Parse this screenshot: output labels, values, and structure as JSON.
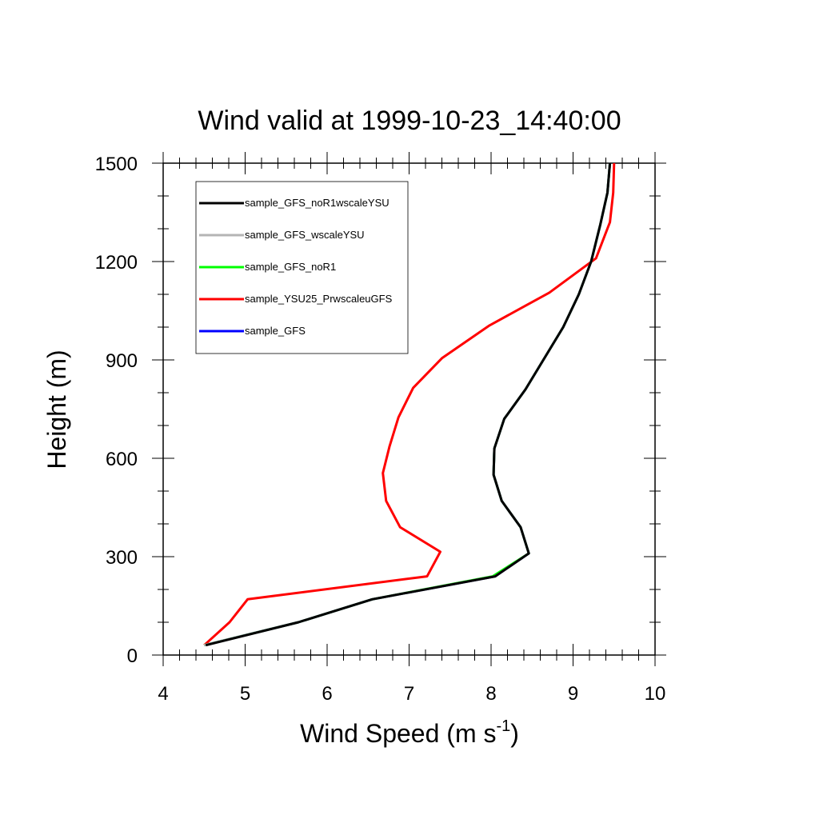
{
  "chart_data": {
    "type": "line",
    "title": "Wind valid at 1999-10-23_14:40:00",
    "xlabel": "Wind Speed (m s",
    "xlabel_sup": "-1",
    "xlabel_end": ")",
    "ylabel": "Height (m)",
    "xlim": [
      4,
      10
    ],
    "ylim": [
      0,
      1500
    ],
    "x_ticks": [
      4,
      5,
      6,
      7,
      8,
      9,
      10
    ],
    "y_ticks": [
      0,
      300,
      600,
      900,
      1200,
      1500
    ],
    "x_tick_labels": [
      "4",
      "5",
      "6",
      "7",
      "8",
      "9",
      "10"
    ],
    "y_tick_labels": [
      "0",
      "300",
      "600",
      "900",
      "1200",
      "1500"
    ],
    "legend_placement": "top-left",
    "series": [
      {
        "name": "sample_GFS",
        "color": "#0000ff",
        "x": [
          4.5,
          5.65,
          6.55,
          8.05,
          8.46,
          8.36,
          8.13,
          8.03,
          8.04,
          8.16,
          8.42,
          8.88,
          9.07,
          9.22,
          9.33,
          9.42,
          9.45
        ],
        "y": [
          30,
          100,
          170,
          240,
          310,
          390,
          470,
          550,
          630,
          720,
          810,
          1000,
          1100,
          1200,
          1310,
          1410,
          1500
        ]
      },
      {
        "name": "sample_YSU25_PrwscaleuGFS",
        "color": "#ff0000",
        "x": [
          4.5,
          4.81,
          5.03,
          7.22,
          7.38,
          6.89,
          6.72,
          6.68,
          6.76,
          6.87,
          7.05,
          7.4,
          7.98,
          8.71,
          9.28,
          9.45,
          9.49,
          9.5
        ],
        "y": [
          30,
          100,
          170,
          240,
          315,
          390,
          470,
          555,
          635,
          725,
          815,
          905,
          1005,
          1105,
          1210,
          1320,
          1410,
          1500
        ]
      },
      {
        "name": "sample_GFS_noR1",
        "color": "#00ff00",
        "x": [
          4.5,
          5.65,
          6.55,
          8.02,
          8.46,
          8.36,
          8.13,
          8.03,
          8.04,
          8.16,
          8.42,
          8.88,
          9.07,
          9.22,
          9.33,
          9.42,
          9.45
        ],
        "y": [
          30,
          100,
          170,
          240,
          310,
          390,
          470,
          550,
          630,
          720,
          810,
          1000,
          1100,
          1200,
          1310,
          1410,
          1500
        ]
      },
      {
        "name": "sample_GFS_wscaleYSU",
        "color": "#b4b4b4",
        "x": [
          4.5,
          5.65,
          6.55,
          8.05,
          8.46,
          8.36,
          8.13,
          8.03,
          8.04,
          8.16,
          8.42,
          8.88,
          9.07,
          9.22,
          9.33,
          9.42,
          9.45
        ],
        "y": [
          30,
          100,
          170,
          240,
          310,
          390,
          470,
          550,
          630,
          720,
          810,
          1000,
          1100,
          1200,
          1310,
          1410,
          1500
        ]
      },
      {
        "name": "sample_GFS_noR1wscaleYSU",
        "color": "#000000",
        "x": [
          4.52,
          5.65,
          6.55,
          8.05,
          8.46,
          8.36,
          8.13,
          8.03,
          8.04,
          8.16,
          8.42,
          8.88,
          9.07,
          9.22,
          9.33,
          9.42,
          9.45
        ],
        "y": [
          30,
          100,
          170,
          240,
          310,
          390,
          470,
          550,
          630,
          720,
          810,
          1000,
          1100,
          1200,
          1310,
          1410,
          1500
        ]
      }
    ],
    "legend_order": [
      "sample_GFS_noR1wscaleYSU",
      "sample_GFS_wscaleYSU",
      "sample_GFS_noR1",
      "sample_YSU25_PrwscaleuGFS",
      "sample_GFS"
    ]
  }
}
